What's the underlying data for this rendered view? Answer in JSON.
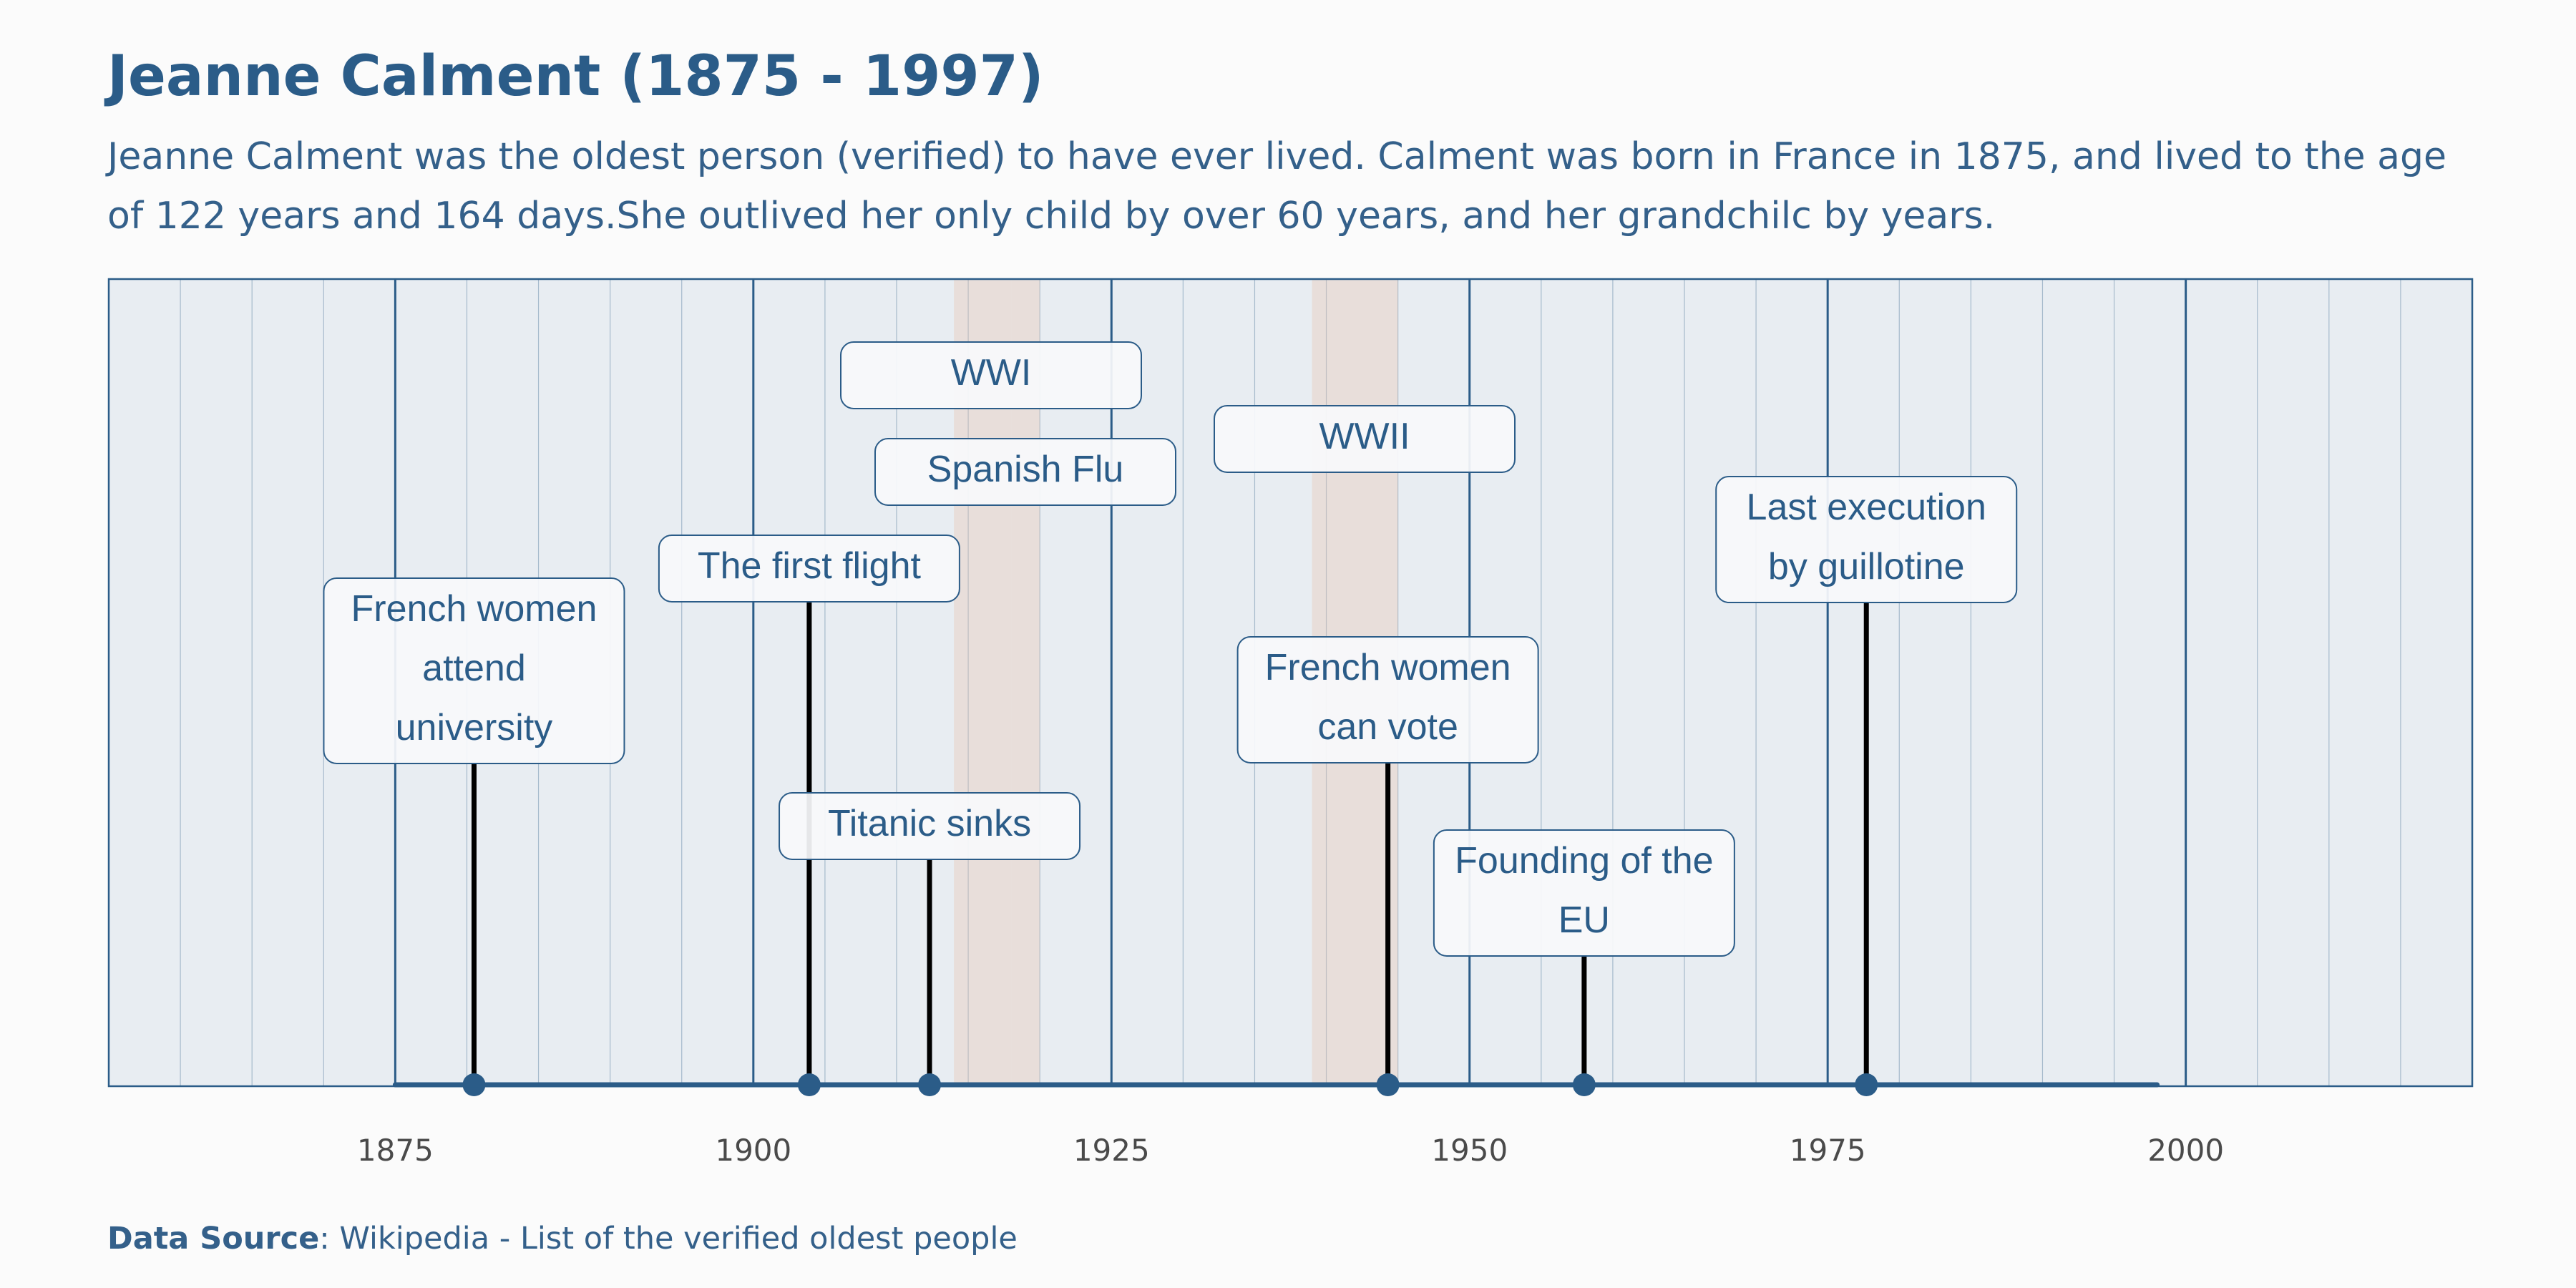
{
  "title": "Jeanne Calment (1875 - 1997)",
  "subtitle": "Jeanne Calment was the oldest person (verified) to have ever lived. Calment was born in France in 1875, and lived to the age of 122 years and 164 days.She outlived her only child by over 60 years, and her grandchilc by years.",
  "source": {
    "label": "Data Source",
    "text": ": Wikipedia - List of the verified oldest people"
  },
  "chart_data": {
    "type": "timeline",
    "xlim": [
      1855,
      2020
    ],
    "major_ticks": [
      1875,
      1900,
      1925,
      1950,
      1975,
      2000
    ],
    "minor_step": 5,
    "lifespan": [
      1875,
      1998
    ],
    "periods": [
      {
        "label": "WWI",
        "start": 1914,
        "end": 1918
      },
      {
        "label": "Spanish Flu",
        "start": 1918,
        "end": 1920
      },
      {
        "label": "WWII",
        "start": 1939,
        "end": 1945
      }
    ],
    "events": [
      {
        "year": 1880.5,
        "label": [
          "French women",
          "attend",
          "university"
        ]
      },
      {
        "year": 1903.9,
        "label": [
          "The first flight"
        ]
      },
      {
        "year": 1912.3,
        "label": [
          "Titanic sinks"
        ]
      },
      {
        "year": 1944.3,
        "label": [
          "French women",
          "can vote"
        ]
      },
      {
        "year": 1958,
        "label": [
          "Founding of the",
          "EU"
        ]
      },
      {
        "year": 1977.7,
        "label": [
          "Last execution",
          "by guillotine"
        ]
      }
    ],
    "colors": {
      "plot_bg": "#e8edf2",
      "axis": "#2b5c88",
      "period_fill": "#e8c4b4",
      "stem": "#000000",
      "marker": "#2b5c88",
      "label_box": "#f7f9fb"
    }
  }
}
